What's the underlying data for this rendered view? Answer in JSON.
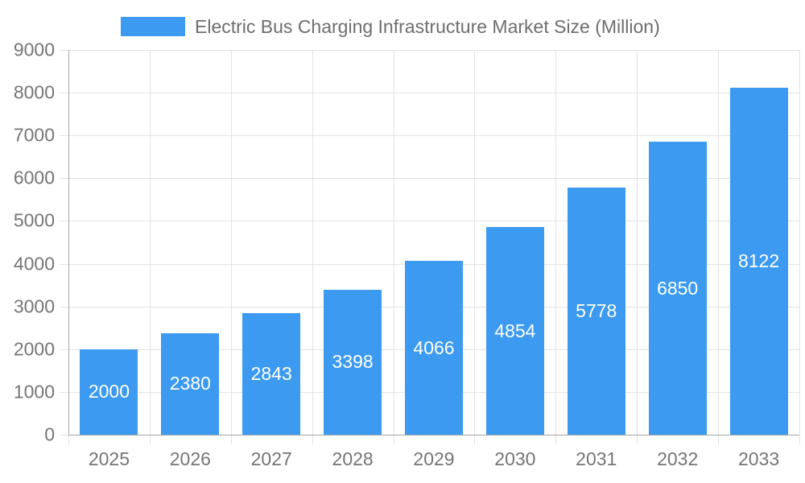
{
  "chart_data": {
    "type": "bar",
    "title": "Electric Bus Charging Infrastructure Market Size (Million)",
    "categories": [
      "2025",
      "2026",
      "2027",
      "2028",
      "2029",
      "2030",
      "2031",
      "2032",
      "2033"
    ],
    "values": [
      2000,
      2380,
      2843,
      3398,
      4066,
      4854,
      5778,
      6850,
      8122
    ],
    "xlabel": "",
    "ylabel": "",
    "ylim": [
      0,
      9000
    ],
    "ytick_step": 1000,
    "grid": true,
    "legend_position": "top",
    "bar_color": "#3c9af0",
    "bar_label_color": "#ffffff",
    "axis_text_color": "#757575",
    "legend_text_color": "#6e6e6e",
    "grid_color": "#e2e2e2",
    "axis_line_color": "#a6a6a6",
    "background_color": "#ffffff"
  }
}
